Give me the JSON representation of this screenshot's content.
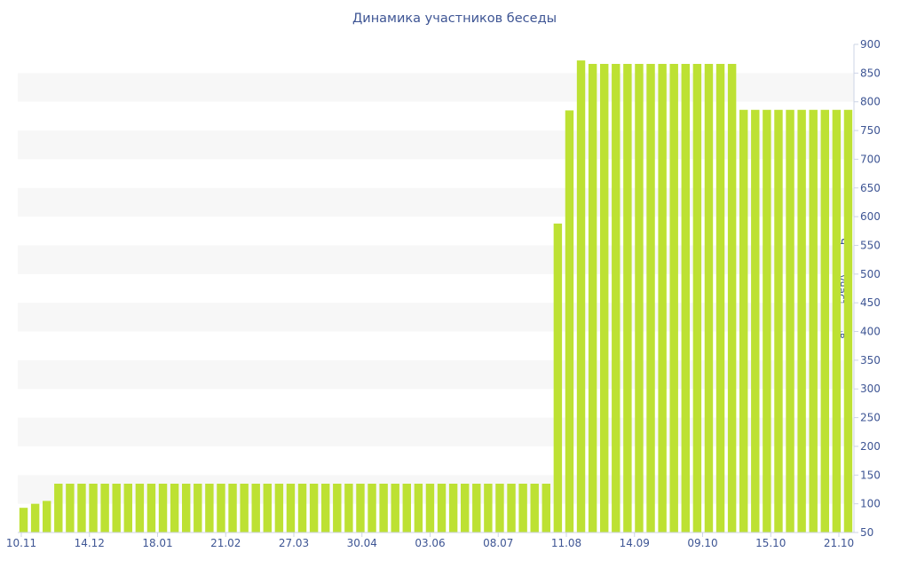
{
  "chart_data": {
    "type": "bar",
    "title": "Динамика участников беседы",
    "xlabel": "",
    "ylabel": "Число участников",
    "ylim": [
      50,
      900
    ],
    "y_ticks": [
      50,
      100,
      150,
      200,
      250,
      300,
      350,
      400,
      450,
      500,
      550,
      600,
      650,
      700,
      750,
      800,
      850,
      900
    ],
    "x_tick_labels": [
      "10.11",
      "14.12",
      "18.01",
      "21.02",
      "27.03",
      "30.04",
      "03.06",
      "08.07",
      "11.08",
      "14.09",
      "09.10",
      "15.10",
      "21.10"
    ],
    "grid": "horizontal bands",
    "colors": {
      "bar": "#bde133",
      "band": "#f7f7f7",
      "text": "#3e5594",
      "axis": "#ccd4e6"
    },
    "series": [
      {
        "values": [
          93,
          100,
          105,
          135,
          135,
          135,
          135,
          135,
          135,
          135,
          135,
          135,
          135,
          135,
          135,
          135,
          135,
          135,
          135,
          135,
          135,
          135,
          135,
          135,
          135,
          135,
          135,
          135,
          135,
          135,
          135,
          135,
          135,
          135,
          135,
          135,
          135,
          135,
          135,
          135,
          135,
          135,
          135,
          135,
          135,
          135,
          588,
          785,
          872,
          866,
          866,
          866,
          866,
          866,
          866,
          866,
          866,
          866,
          866,
          866,
          866,
          866,
          786,
          786,
          786,
          786,
          786,
          786,
          786,
          786,
          786,
          786
        ]
      }
    ]
  }
}
